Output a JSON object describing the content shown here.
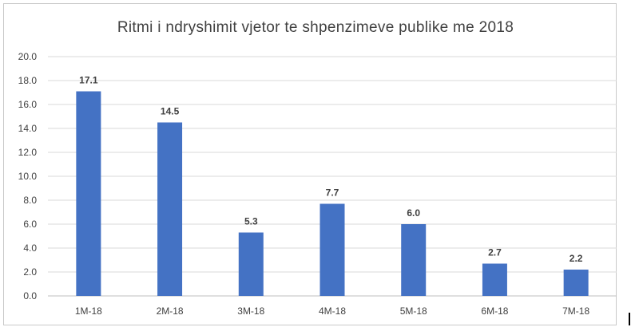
{
  "chart_data": {
    "type": "bar",
    "title": "Ritmi i ndryshimit vjetor te shpenzimeve publike me 2018",
    "categories": [
      "1M-18",
      "2M-18",
      "3M-18",
      "4M-18",
      "5M-18",
      "6M-18",
      "7M-18"
    ],
    "values": [
      17.1,
      14.5,
      5.3,
      7.7,
      6.0,
      2.7,
      2.2
    ],
    "data_labels": [
      "17.1",
      "14.5",
      "5.3",
      "7.7",
      "6.0",
      "2.7",
      "2.2"
    ],
    "y_ticks": [
      "0.0",
      "2.0",
      "4.0",
      "6.0",
      "8.0",
      "10.0",
      "12.0",
      "14.0",
      "16.0",
      "18.0",
      "20.0"
    ],
    "ylim": [
      0,
      20
    ],
    "xlabel": "",
    "ylabel": "",
    "grid": true,
    "legend": "none",
    "bar_color": "#4472C4",
    "grid_color": "#d9d9d9"
  }
}
